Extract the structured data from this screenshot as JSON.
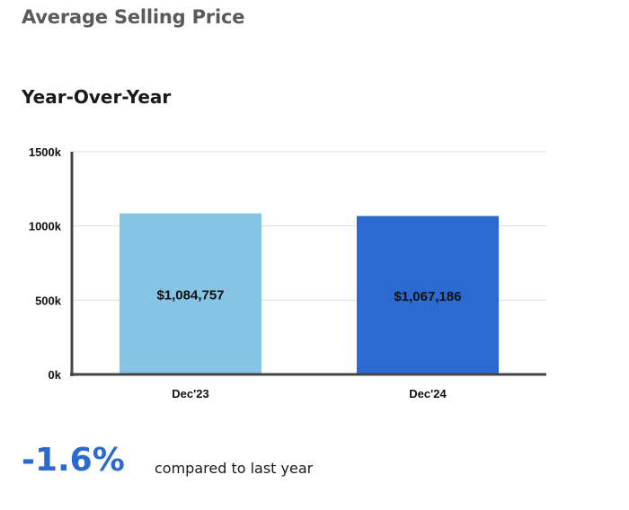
{
  "header": {
    "title": "Average Selling Price"
  },
  "section": {
    "title": "Year-Over-Year"
  },
  "summary": {
    "change": "-1.6%",
    "caption": "compared to last year"
  },
  "colors": {
    "accent": "#2b6ad0",
    "bar_prior": "#86c4e6",
    "bar_current": "#2b6ad0",
    "axis": "#444444",
    "grid": "#dddddd"
  },
  "chart_data": {
    "type": "bar",
    "categories": [
      "Dec'23",
      "Dec'24"
    ],
    "values": [
      1084757,
      1067186
    ],
    "data_labels": [
      "$1,084,757",
      "$1,067,186"
    ],
    "yticks": [
      0,
      500000,
      1000000,
      1500000
    ],
    "ytick_labels": [
      "0k",
      "500k",
      "1000k",
      "1500k"
    ],
    "ylim": [
      0,
      1500000
    ],
    "grid": true,
    "title": "",
    "xlabel": "",
    "ylabel": ""
  }
}
